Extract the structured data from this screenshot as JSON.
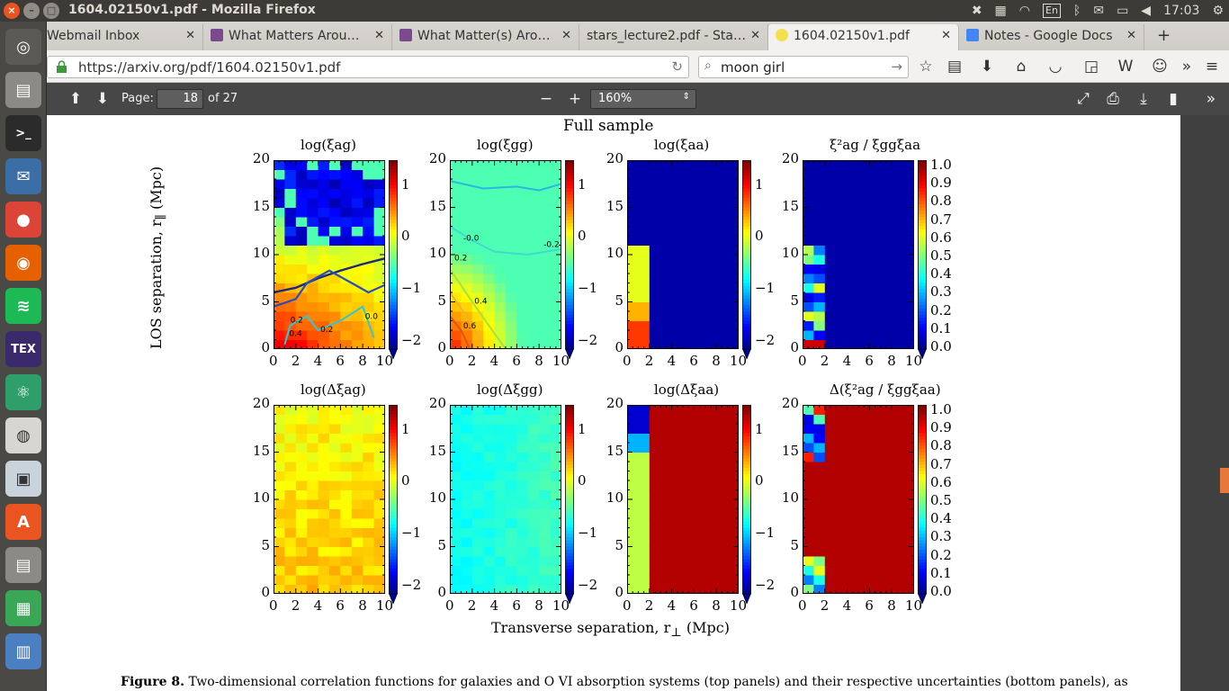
{
  "system": {
    "window_title": "1604.02150v1.pdf - Mozilla Firefox",
    "keyboard_layout": "En",
    "time": "17:03"
  },
  "tabs": [
    {
      "label": "Webmail Inbox",
      "active": false
    },
    {
      "label": "What Matters Arou…",
      "active": false
    },
    {
      "label": "What Matter(s) Aro…",
      "active": false
    },
    {
      "label": "stars_lecture2.pdf - Sta…",
      "active": false
    },
    {
      "label": "1604.02150v1.pdf",
      "active": true
    },
    {
      "label": "Notes - Google Docs",
      "active": false
    }
  ],
  "navbar": {
    "url": "https://arxiv.org/pdf/1604.02150v1.pdf",
    "search_value": "moon girl"
  },
  "pdf_toolbar": {
    "page_label": "Page:",
    "page_value": "18",
    "page_total": "of 27",
    "zoom": "160%",
    "minus": "−",
    "plus": "+"
  },
  "figure": {
    "title": "Full sample",
    "ylabel_main": "LOS separation, r",
    "ylabel_sub": "∥",
    "ylabel_unit": " (Mpc)",
    "xlabel_main": "Transverse separation, r",
    "xlabel_sub": "⊥",
    "xlabel_unit": " (Mpc)",
    "caption_bold": "Figure 8.",
    "caption_text": " Two-dimensional correlation functions for galaxies and O  VI absorption systems (top panels) and their respective uncertainties (bottom panels), as",
    "panel_titles": [
      "log(ξag)",
      "log(ξgg)",
      "log(ξaa)",
      "ξ²ag / ξggξaa",
      "log(Δξag)",
      "log(Δξgg)",
      "log(Δξaa)",
      "Δ(ξ²ag / ξggξaa)"
    ],
    "x_ticks": [
      "0",
      "2",
      "4",
      "6",
      "8",
      "10"
    ],
    "y_ticks": [
      "0",
      "5",
      "10",
      "15",
      "20"
    ],
    "log_cbar_ticks": [
      "1",
      "0",
      "−1",
      "−2"
    ],
    "ratio_cbar_ticks": [
      "1.0",
      "0.9",
      "0.8",
      "0.7",
      "0.6",
      "0.5",
      "0.4",
      "0.3",
      "0.2",
      "0.1",
      "0.0"
    ],
    "contour_labels": [
      "0.2",
      "0.4",
      "0.2",
      "0.0",
      "-0.0",
      "-0.2",
      "0.2",
      "0.4",
      "0.6"
    ]
  },
  "chart_data": [
    {
      "type": "heatmap",
      "title": "log(ξag)",
      "x_range": [
        0,
        10
      ],
      "y_range": [
        0,
        20
      ],
      "color_range": [
        -2,
        1.5
      ],
      "xlabel": "Transverse separation, r⊥ (Mpc)",
      "ylabel": "LOS separation, r∥ (Mpc)"
    },
    {
      "type": "heatmap",
      "title": "log(ξgg)",
      "x_range": [
        0,
        10
      ],
      "y_range": [
        0,
        20
      ],
      "color_range": [
        -2,
        1.5
      ]
    },
    {
      "type": "heatmap",
      "title": "log(ξaa)",
      "x_range": [
        0,
        10
      ],
      "y_range": [
        0,
        20
      ],
      "color_range": [
        -2,
        1.5
      ]
    },
    {
      "type": "heatmap",
      "title": "ξ²ag / ξggξaa",
      "x_range": [
        0,
        10
      ],
      "y_range": [
        0,
        20
      ],
      "color_range": [
        0,
        1
      ]
    },
    {
      "type": "heatmap",
      "title": "log(Δξag)",
      "x_range": [
        0,
        10
      ],
      "y_range": [
        0,
        20
      ],
      "color_range": [
        -2,
        1.5
      ]
    },
    {
      "type": "heatmap",
      "title": "log(Δξgg)",
      "x_range": [
        0,
        10
      ],
      "y_range": [
        0,
        20
      ],
      "color_range": [
        -2,
        1.5
      ]
    },
    {
      "type": "heatmap",
      "title": "log(Δξaa)",
      "x_range": [
        0,
        10
      ],
      "y_range": [
        0,
        20
      ],
      "color_range": [
        -2,
        1.5
      ]
    },
    {
      "type": "heatmap",
      "title": "Δ(ξ²ag / ξggξaa)",
      "x_range": [
        0,
        10
      ],
      "y_range": [
        0,
        20
      ],
      "color_range": [
        0,
        1
      ]
    }
  ]
}
